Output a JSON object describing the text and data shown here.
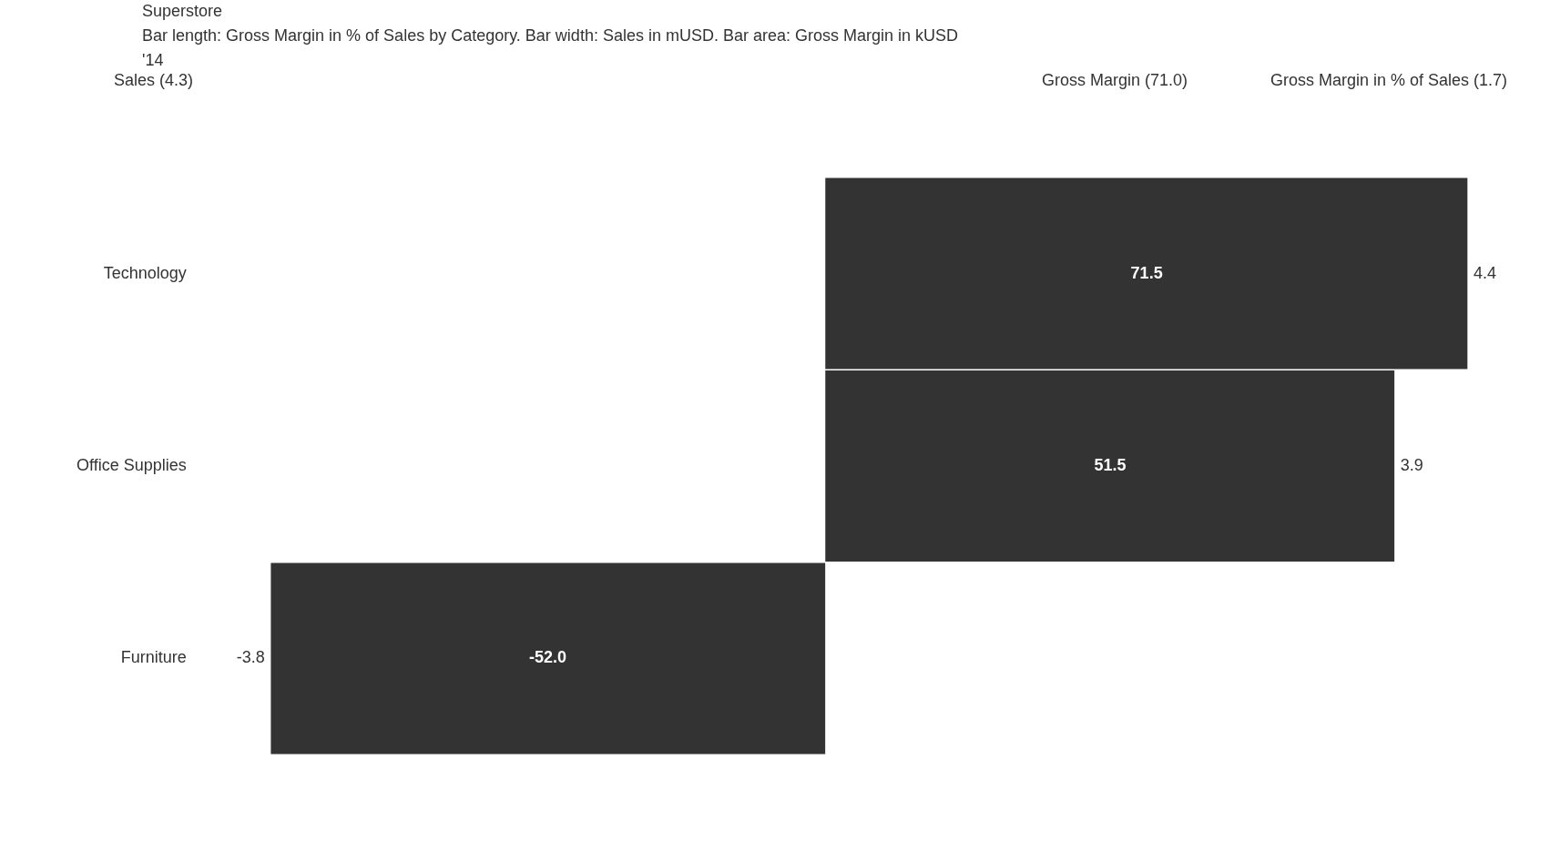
{
  "chart_data": {
    "type": "bar",
    "orientation": "horizontal",
    "title": "Superstore",
    "subtitle": "Bar length: Gross Margin in % of Sales by Category. Bar width: Sales in mUSD. Bar area: Gross Margin in kUSD",
    "categories": [
      "Technology",
      "Office Supplies",
      "Furniture"
    ],
    "values": [
      4.4,
      3.9,
      -3.8
    ],
    "color": "#333333",
    "data_labels": true,
    "grid": false,
    "legend": false,
    "annotations": [
      "'14",
      "Sales (4.3)",
      "Gross Margin (71.0)",
      "Gross Margin in % of Sales (1.7)",
      "71.5",
      "51.5",
      "-52.0"
    ]
  }
}
